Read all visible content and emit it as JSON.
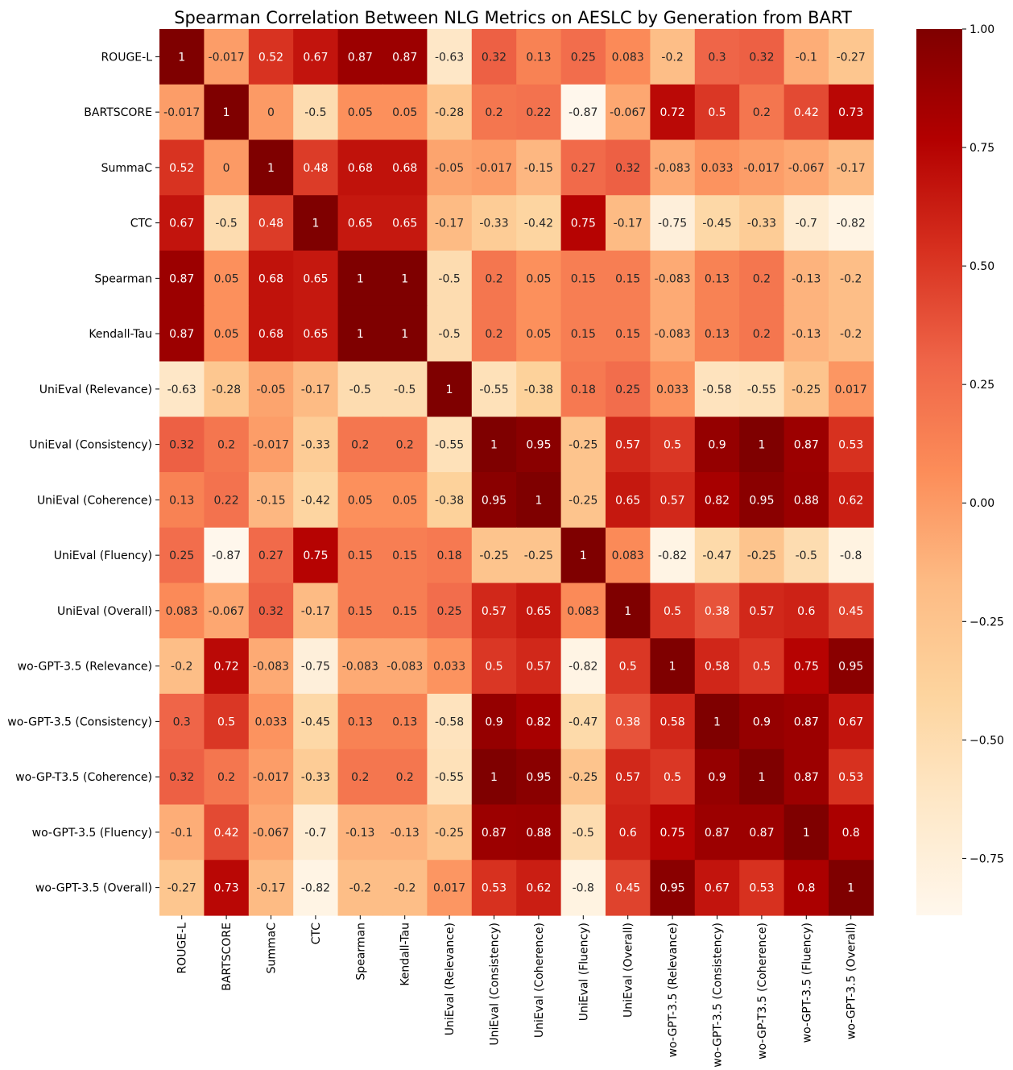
{
  "chart_data": {
    "type": "heatmap",
    "title": "Spearman Correlation Between NLG Metrics on AESLC by Generation from BART",
    "row_labels": [
      "ROUGE-L",
      "BARTSCORE",
      "SummaC",
      "CTC",
      "Spearman",
      "Kendall-Tau",
      "UniEval (Relevance)",
      "UniEval (Consistency)",
      "UniEval (Coherence)",
      "UniEval (Fluency)",
      "UniEval (Overall)",
      "wo-GPT-3.5 (Relevance)",
      "wo-GPT-3.5 (Consistency)",
      "wo-GP-T3.5 (Coherence)",
      "wo-GPT-3.5 (Fluency)",
      "wo-GPT-3.5 (Overall)"
    ],
    "column_labels": [
      "ROUGE-L",
      "BARTSCORE",
      "SummaC",
      "CTC",
      "Spearman",
      "Kendall-Tau",
      "UniEval (Relevance)",
      "UniEval (Consistency)",
      "UniEval (Coherence)",
      "UniEval (Fluency)",
      "UniEval (Overall)",
      "wo-GPT-3.5 (Relevance)",
      "wo-GPT-3.5 (Consistency)",
      "wo-GP-T3.5 (Coherence)",
      "wo-GPT-3.5 (Fluency)",
      "wo-GPT-3.5 (Overall)"
    ],
    "values": [
      [
        1,
        -0.017,
        0.52,
        0.67,
        0.87,
        0.87,
        -0.63,
        0.32,
        0.13,
        0.25,
        0.083,
        -0.2,
        0.3,
        0.32,
        -0.1,
        -0.27
      ],
      [
        -0.017,
        1,
        0,
        -0.5,
        0.05,
        0.05,
        -0.28,
        0.2,
        0.22,
        -0.87,
        -0.067,
        0.72,
        0.5,
        0.2,
        0.42,
        0.73
      ],
      [
        0.52,
        0,
        1,
        0.48,
        0.68,
        0.68,
        -0.05,
        -0.017,
        -0.15,
        0.27,
        0.32,
        -0.083,
        0.033,
        -0.017,
        -0.067,
        -0.17
      ],
      [
        0.67,
        -0.5,
        0.48,
        1,
        0.65,
        0.65,
        -0.17,
        -0.33,
        -0.42,
        0.75,
        -0.17,
        -0.75,
        -0.45,
        -0.33,
        -0.7,
        -0.82
      ],
      [
        0.87,
        0.05,
        0.68,
        0.65,
        1,
        1,
        -0.5,
        0.2,
        0.05,
        0.15,
        0.15,
        -0.083,
        0.13,
        0.2,
        -0.13,
        -0.2
      ],
      [
        0.87,
        0.05,
        0.68,
        0.65,
        1,
        1,
        -0.5,
        0.2,
        0.05,
        0.15,
        0.15,
        -0.083,
        0.13,
        0.2,
        -0.13,
        -0.2
      ],
      [
        -0.63,
        -0.28,
        -0.05,
        -0.17,
        -0.5,
        -0.5,
        1,
        -0.55,
        -0.38,
        0.18,
        0.25,
        0.033,
        -0.58,
        -0.55,
        -0.25,
        0.017
      ],
      [
        0.32,
        0.2,
        -0.017,
        -0.33,
        0.2,
        0.2,
        -0.55,
        1,
        0.95,
        -0.25,
        0.57,
        0.5,
        0.9,
        1,
        0.87,
        0.53
      ],
      [
        0.13,
        0.22,
        -0.15,
        -0.42,
        0.05,
        0.05,
        -0.38,
        0.95,
        1,
        -0.25,
        0.65,
        0.57,
        0.82,
        0.95,
        0.88,
        0.62
      ],
      [
        0.25,
        -0.87,
        0.27,
        0.75,
        0.15,
        0.15,
        0.18,
        -0.25,
        -0.25,
        1,
        0.083,
        -0.82,
        -0.47,
        -0.25,
        -0.5,
        -0.8
      ],
      [
        0.083,
        -0.067,
        0.32,
        -0.17,
        0.15,
        0.15,
        0.25,
        0.57,
        0.65,
        0.083,
        1,
        0.5,
        0.38,
        0.57,
        0.6,
        0.45
      ],
      [
        -0.2,
        0.72,
        -0.083,
        -0.75,
        -0.083,
        -0.083,
        0.033,
        0.5,
        0.57,
        -0.82,
        0.5,
        1,
        0.58,
        0.5,
        0.75,
        0.95
      ],
      [
        0.3,
        0.5,
        0.033,
        -0.45,
        0.13,
        0.13,
        -0.58,
        0.9,
        0.82,
        -0.47,
        0.38,
        0.58,
        1,
        0.9,
        0.87,
        0.67
      ],
      [
        0.32,
        0.2,
        -0.017,
        -0.33,
        0.2,
        0.2,
        -0.55,
        1,
        0.95,
        -0.25,
        0.57,
        0.5,
        0.9,
        1,
        0.87,
        0.53
      ],
      [
        -0.1,
        0.42,
        -0.067,
        -0.7,
        -0.13,
        -0.13,
        -0.25,
        0.87,
        0.88,
        -0.5,
        0.6,
        0.75,
        0.87,
        0.87,
        1,
        0.8
      ],
      [
        -0.27,
        0.73,
        -0.17,
        -0.82,
        -0.2,
        -0.2,
        0.017,
        0.53,
        0.62,
        -0.8,
        0.45,
        0.95,
        0.67,
        0.53,
        0.8,
        1
      ]
    ],
    "value_labels": [
      [
        "1",
        "-0.017",
        "0.52",
        "0.67",
        "0.87",
        "0.87",
        "-0.63",
        "0.32",
        "0.13",
        "0.25",
        "0.083",
        "-0.2",
        "0.3",
        "0.32",
        "-0.1",
        "-0.27"
      ],
      [
        "-0.017",
        "1",
        "0",
        "-0.5",
        "0.05",
        "0.05",
        "-0.28",
        "0.2",
        "0.22",
        "-0.87",
        "-0.067",
        "0.72",
        "0.5",
        "0.2",
        "0.42",
        "0.73"
      ],
      [
        "0.52",
        "0",
        "1",
        "0.48",
        "0.68",
        "0.68",
        "-0.05",
        "-0.017",
        "-0.15",
        "0.27",
        "0.32",
        "-0.083",
        "0.033",
        "-0.017",
        "-0.067",
        "-0.17"
      ],
      [
        "0.67",
        "-0.5",
        "0.48",
        "1",
        "0.65",
        "0.65",
        "-0.17",
        "-0.33",
        "-0.42",
        "0.75",
        "-0.17",
        "-0.75",
        "-0.45",
        "-0.33",
        "-0.7",
        "-0.82"
      ],
      [
        "0.87",
        "0.05",
        "0.68",
        "0.65",
        "1",
        "1",
        "-0.5",
        "0.2",
        "0.05",
        "0.15",
        "0.15",
        "-0.083",
        "0.13",
        "0.2",
        "-0.13",
        "-0.2"
      ],
      [
        "0.87",
        "0.05",
        "0.68",
        "0.65",
        "1",
        "1",
        "-0.5",
        "0.2",
        "0.05",
        "0.15",
        "0.15",
        "-0.083",
        "0.13",
        "0.2",
        "-0.13",
        "-0.2"
      ],
      [
        "-0.63",
        "-0.28",
        "-0.05",
        "-0.17",
        "-0.5",
        "-0.5",
        "1",
        "-0.55",
        "-0.38",
        "0.18",
        "0.25",
        "0.033",
        "-0.58",
        "-0.55",
        "-0.25",
        "0.017"
      ],
      [
        "0.32",
        "0.2",
        "-0.017",
        "-0.33",
        "0.2",
        "0.2",
        "-0.55",
        "1",
        "0.95",
        "-0.25",
        "0.57",
        "0.5",
        "0.9",
        "1",
        "0.87",
        "0.53"
      ],
      [
        "0.13",
        "0.22",
        "-0.15",
        "-0.42",
        "0.05",
        "0.05",
        "-0.38",
        "0.95",
        "1",
        "-0.25",
        "0.65",
        "0.57",
        "0.82",
        "0.95",
        "0.88",
        "0.62"
      ],
      [
        "0.25",
        "-0.87",
        "0.27",
        "0.75",
        "0.15",
        "0.15",
        "0.18",
        "-0.25",
        "-0.25",
        "1",
        "0.083",
        "-0.82",
        "-0.47",
        "-0.25",
        "-0.5",
        "-0.8"
      ],
      [
        "0.083",
        "-0.067",
        "0.32",
        "-0.17",
        "0.15",
        "0.15",
        "0.25",
        "0.57",
        "0.65",
        "0.083",
        "1",
        "0.5",
        "0.38",
        "0.57",
        "0.6",
        "0.45"
      ],
      [
        "-0.2",
        "0.72",
        "-0.083",
        "-0.75",
        "-0.083",
        "-0.083",
        "0.033",
        "0.5",
        "0.57",
        "-0.82",
        "0.5",
        "1",
        "0.58",
        "0.5",
        "0.75",
        "0.95"
      ],
      [
        "0.3",
        "0.5",
        "0.033",
        "-0.45",
        "0.13",
        "0.13",
        "-0.58",
        "0.9",
        "0.82",
        "-0.47",
        "0.38",
        "0.58",
        "1",
        "0.9",
        "0.87",
        "0.67"
      ],
      [
        "0.32",
        "0.2",
        "-0.017",
        "-0.33",
        "0.2",
        "0.2",
        "-0.55",
        "1",
        "0.95",
        "-0.25",
        "0.57",
        "0.5",
        "0.9",
        "1",
        "0.87",
        "0.53"
      ],
      [
        "-0.1",
        "0.42",
        "-0.067",
        "-0.7",
        "-0.13",
        "-0.13",
        "-0.25",
        "0.87",
        "0.88",
        "-0.5",
        "0.6",
        "0.75",
        "0.87",
        "0.87",
        "1",
        "0.8"
      ],
      [
        "-0.27",
        "0.73",
        "-0.17",
        "-0.82",
        "-0.2",
        "-0.2",
        "0.017",
        "0.53",
        "0.62",
        "-0.8",
        "0.45",
        "0.95",
        "0.67",
        "0.53",
        "0.8",
        "1"
      ]
    ],
    "colormap": "OrRd",
    "color_stops": [
      "#fff7ec",
      "#fee8c8",
      "#fdd49e",
      "#fdbb84",
      "#fc8d59",
      "#ef6548",
      "#d7301f",
      "#b30000",
      "#7f0000"
    ],
    "vmin": -0.87,
    "vmax": 1,
    "colorbar": {
      "ticks": [
        1,
        0.75,
        0.5,
        0.25,
        0,
        -0.25,
        -0.5,
        -0.75
      ],
      "tick_labels": [
        "1.00",
        "0.75",
        "0.50",
        "0.25",
        "0.00",
        "−0.25",
        "−0.50",
        "−0.75"
      ]
    }
  }
}
